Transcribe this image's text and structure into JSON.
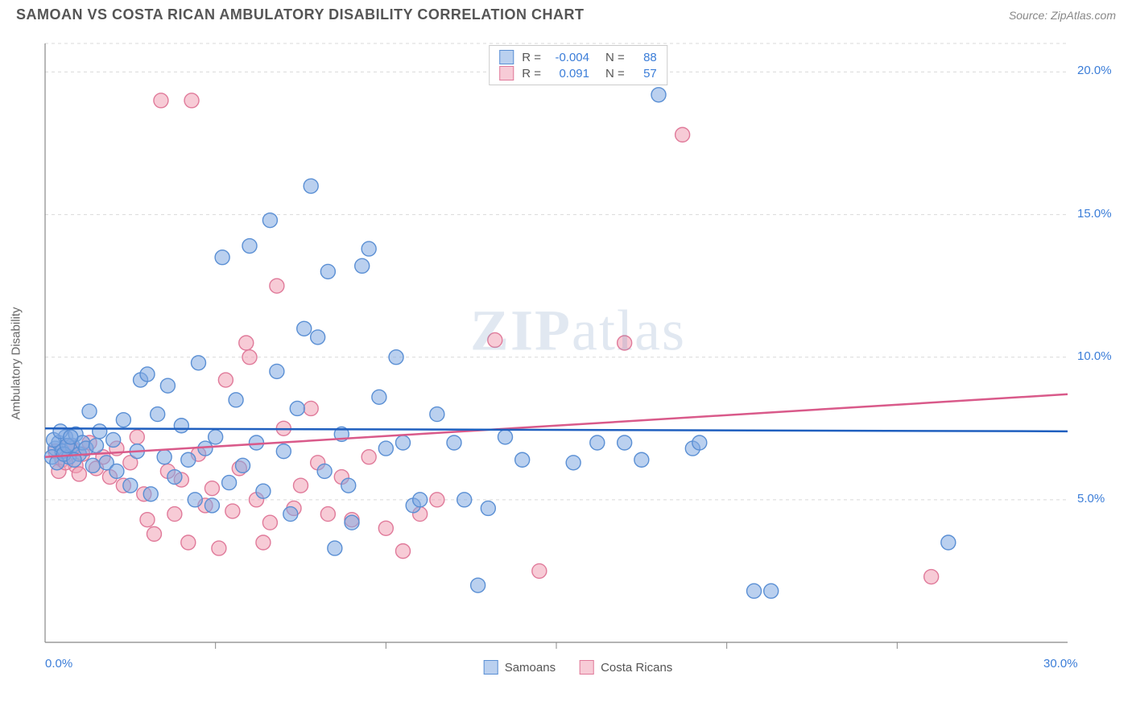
{
  "header": {
    "title": "SAMOAN VS COSTA RICAN AMBULATORY DISABILITY CORRELATION CHART",
    "source": "Source: ZipAtlas.com"
  },
  "chart": {
    "type": "scatter",
    "y_axis_label": "Ambulatory Disability",
    "watermark": "ZIPatlas",
    "xlim": [
      0,
      30
    ],
    "ylim": [
      0,
      21
    ],
    "x_ticks": [
      0,
      5,
      10,
      15,
      20,
      25,
      30
    ],
    "x_tick_labels": {
      "0": "0.0%",
      "30": "30.0%"
    },
    "y_ticks": [
      5,
      10,
      15,
      20
    ],
    "y_tick_labels": {
      "5": "5.0%",
      "10": "10.0%",
      "15": "15.0%",
      "20": "20.0%"
    },
    "grid_color": "#d9d9d9",
    "axis_color": "#888888",
    "background_color": "#ffffff",
    "marker_radius": 9,
    "marker_stroke_width": 1.4,
    "trend_line_width": 2.5,
    "series": {
      "samoans": {
        "label": "Samoans",
        "fill": "rgba(130,170,225,0.55)",
        "stroke": "#5a8fd4",
        "trend_color": "#1f5fbf",
        "R": "-0.004",
        "N": "88",
        "trend": {
          "x1": 0,
          "y1": 7.5,
          "x2": 30,
          "y2": 7.4
        },
        "points": [
          [
            0.3,
            6.8
          ],
          [
            0.4,
            7.0
          ],
          [
            0.5,
            6.7
          ],
          [
            0.6,
            7.2
          ],
          [
            0.7,
            6.5
          ],
          [
            0.8,
            6.9
          ],
          [
            0.9,
            7.3
          ],
          [
            1.0,
            6.6
          ],
          [
            1.1,
            7.0
          ],
          [
            1.2,
            6.8
          ],
          [
            1.3,
            8.1
          ],
          [
            1.4,
            6.2
          ],
          [
            1.5,
            6.9
          ],
          [
            1.6,
            7.4
          ],
          [
            1.8,
            6.3
          ],
          [
            2.0,
            7.1
          ],
          [
            2.1,
            6.0
          ],
          [
            2.3,
            7.8
          ],
          [
            2.5,
            5.5
          ],
          [
            2.7,
            6.7
          ],
          [
            2.8,
            9.2
          ],
          [
            3.0,
            9.4
          ],
          [
            3.1,
            5.2
          ],
          [
            3.3,
            8.0
          ],
          [
            3.5,
            6.5
          ],
          [
            3.6,
            9.0
          ],
          [
            3.8,
            5.8
          ],
          [
            4.0,
            7.6
          ],
          [
            4.2,
            6.4
          ],
          [
            4.4,
            5.0
          ],
          [
            4.5,
            9.8
          ],
          [
            4.7,
            6.8
          ],
          [
            4.9,
            4.8
          ],
          [
            5.0,
            7.2
          ],
          [
            5.2,
            13.5
          ],
          [
            5.4,
            5.6
          ],
          [
            5.6,
            8.5
          ],
          [
            5.8,
            6.2
          ],
          [
            6.0,
            13.9
          ],
          [
            6.2,
            7.0
          ],
          [
            6.4,
            5.3
          ],
          [
            6.6,
            14.8
          ],
          [
            6.8,
            9.5
          ],
          [
            7.0,
            6.7
          ],
          [
            7.2,
            4.5
          ],
          [
            7.4,
            8.2
          ],
          [
            7.6,
            11.0
          ],
          [
            7.8,
            16.0
          ],
          [
            8.0,
            10.7
          ],
          [
            8.2,
            6.0
          ],
          [
            8.3,
            13.0
          ],
          [
            8.5,
            3.3
          ],
          [
            8.7,
            7.3
          ],
          [
            8.9,
            5.5
          ],
          [
            9.0,
            4.2
          ],
          [
            9.3,
            13.2
          ],
          [
            9.5,
            13.8
          ],
          [
            9.8,
            8.6
          ],
          [
            10.0,
            6.8
          ],
          [
            10.3,
            10.0
          ],
          [
            10.5,
            7.0
          ],
          [
            10.8,
            4.8
          ],
          [
            11.0,
            5.0
          ],
          [
            11.5,
            8.0
          ],
          [
            12.0,
            7.0
          ],
          [
            12.3,
            5.0
          ],
          [
            12.7,
            2.0
          ],
          [
            13.0,
            4.7
          ],
          [
            13.5,
            7.2
          ],
          [
            14.0,
            6.4
          ],
          [
            15.5,
            6.3
          ],
          [
            16.2,
            7.0
          ],
          [
            17.0,
            7.0
          ],
          [
            17.5,
            6.4
          ],
          [
            18.0,
            19.2
          ],
          [
            19.0,
            6.8
          ],
          [
            19.2,
            7.0
          ],
          [
            20.8,
            1.8
          ],
          [
            21.3,
            1.8
          ],
          [
            26.5,
            3.5
          ],
          [
            0.2,
            6.5
          ],
          [
            0.25,
            7.1
          ],
          [
            0.35,
            6.3
          ],
          [
            0.45,
            7.4
          ],
          [
            0.55,
            6.6
          ],
          [
            0.65,
            6.9
          ],
          [
            0.75,
            7.2
          ],
          [
            0.85,
            6.4
          ]
        ]
      },
      "costa_ricans": {
        "label": "Costa Ricans",
        "fill": "rgba(240,160,180,0.55)",
        "stroke": "#e07a9a",
        "trend_color": "#d95a8a",
        "R": "0.091",
        "N": "57",
        "trend": {
          "x1": 0,
          "y1": 6.5,
          "x2": 30,
          "y2": 8.7
        },
        "points": [
          [
            0.3,
            6.7
          ],
          [
            0.5,
            6.4
          ],
          [
            0.7,
            6.9
          ],
          [
            0.9,
            6.2
          ],
          [
            1.1,
            6.6
          ],
          [
            1.3,
            7.0
          ],
          [
            1.5,
            6.1
          ],
          [
            1.7,
            6.5
          ],
          [
            1.9,
            5.8
          ],
          [
            2.1,
            6.8
          ],
          [
            2.3,
            5.5
          ],
          [
            2.5,
            6.3
          ],
          [
            2.7,
            7.2
          ],
          [
            2.9,
            5.2
          ],
          [
            3.0,
            4.3
          ],
          [
            3.2,
            3.8
          ],
          [
            3.4,
            19.0
          ],
          [
            3.6,
            6.0
          ],
          [
            3.8,
            4.5
          ],
          [
            4.0,
            5.7
          ],
          [
            4.2,
            3.5
          ],
          [
            4.3,
            19.0
          ],
          [
            4.5,
            6.6
          ],
          [
            4.7,
            4.8
          ],
          [
            4.9,
            5.4
          ],
          [
            5.1,
            3.3
          ],
          [
            5.3,
            9.2
          ],
          [
            5.5,
            4.6
          ],
          [
            5.7,
            6.1
          ],
          [
            5.9,
            10.5
          ],
          [
            6.0,
            10.0
          ],
          [
            6.2,
            5.0
          ],
          [
            6.4,
            3.5
          ],
          [
            6.6,
            4.2
          ],
          [
            6.8,
            12.5
          ],
          [
            7.0,
            7.5
          ],
          [
            7.3,
            4.7
          ],
          [
            7.5,
            5.5
          ],
          [
            7.8,
            8.2
          ],
          [
            8.0,
            6.3
          ],
          [
            8.3,
            4.5
          ],
          [
            8.7,
            5.8
          ],
          [
            9.0,
            4.3
          ],
          [
            9.5,
            6.5
          ],
          [
            10.0,
            4.0
          ],
          [
            10.5,
            3.2
          ],
          [
            11.0,
            4.5
          ],
          [
            11.5,
            5.0
          ],
          [
            13.2,
            10.6
          ],
          [
            14.5,
            2.5
          ],
          [
            17.0,
            10.5
          ],
          [
            18.7,
            17.8
          ],
          [
            26.0,
            2.3
          ],
          [
            0.4,
            6.0
          ],
          [
            0.6,
            6.3
          ],
          [
            0.8,
            6.8
          ],
          [
            1.0,
            5.9
          ]
        ]
      }
    },
    "legend_top": [
      {
        "swatch_fill": "rgba(130,170,225,0.55)",
        "swatch_stroke": "#5a8fd4",
        "r_label": "R =",
        "r_val": "-0.004",
        "n_label": "N =",
        "n_val": "88"
      },
      {
        "swatch_fill": "rgba(240,160,180,0.55)",
        "swatch_stroke": "#e07a9a",
        "r_label": "R =",
        "r_val": "0.091",
        "n_label": "N =",
        "n_val": "57"
      }
    ],
    "legend_bottom": [
      {
        "swatch_fill": "rgba(130,170,225,0.55)",
        "swatch_stroke": "#5a8fd4",
        "label": "Samoans"
      },
      {
        "swatch_fill": "rgba(240,160,180,0.55)",
        "swatch_stroke": "#e07a9a",
        "label": "Costa Ricans"
      }
    ]
  }
}
